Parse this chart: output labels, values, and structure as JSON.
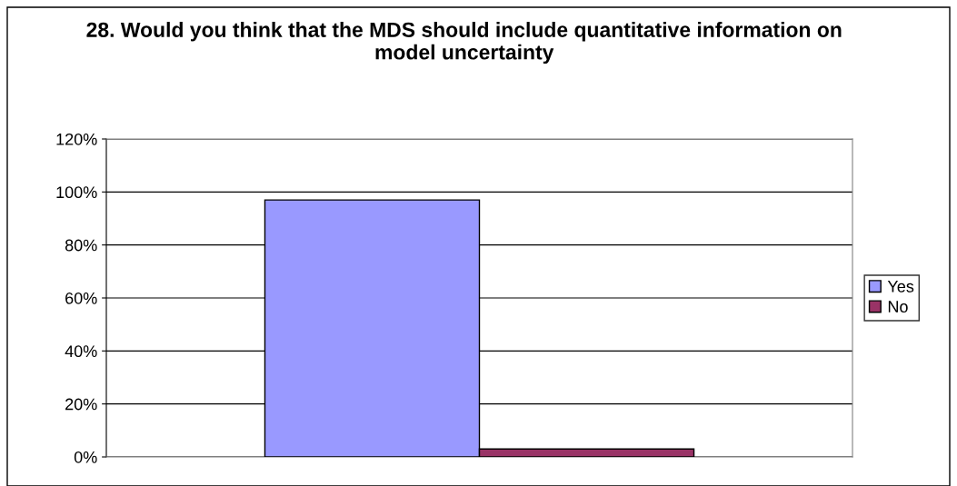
{
  "chart_data": {
    "type": "bar",
    "title": "28. Would you think that the MDS should include quantitative information on model uncertainty",
    "categories": [
      null
    ],
    "series": [
      {
        "name": "Yes",
        "color": "#9999ff",
        "values": [
          97
        ]
      },
      {
        "name": "No",
        "color": "#993366",
        "values": [
          3
        ]
      }
    ],
    "ylim": [
      0,
      120
    ],
    "yticks": [
      {
        "value": 0,
        "label": "0%"
      },
      {
        "value": 20,
        "label": "20%"
      },
      {
        "value": 40,
        "label": "40%"
      },
      {
        "value": 60,
        "label": "60%"
      },
      {
        "value": 80,
        "label": "80%"
      },
      {
        "value": 100,
        "label": "100%"
      },
      {
        "value": 120,
        "label": "120%"
      }
    ],
    "grid": "y",
    "legend": "right"
  }
}
